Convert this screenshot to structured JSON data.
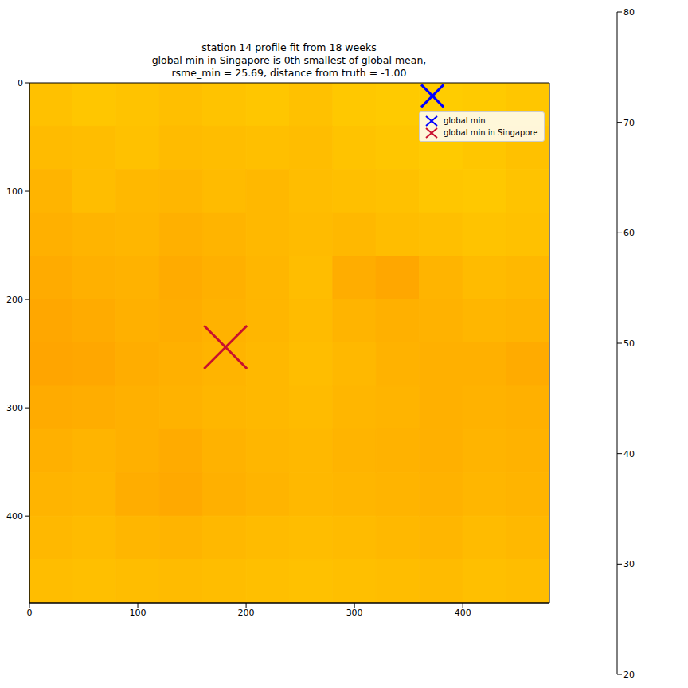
{
  "chart_data": {
    "type": "heatmap",
    "title": "station 14 profile fit from 18 weeks",
    "subtitle": [
      "global min in Singapore is 0th smallest of global mean,",
      "rsme_min = 25.69, distance from truth = -1.00"
    ],
    "xlim": [
      0,
      480
    ],
    "ylim": [
      480,
      0
    ],
    "xticks": [
      0,
      100,
      200,
      300,
      400
    ],
    "yticks": [
      0,
      100,
      200,
      300,
      400
    ],
    "x_bins": [
      0,
      40,
      80,
      120,
      160,
      200,
      240,
      280,
      320,
      360,
      400,
      440,
      480
    ],
    "y_bins": [
      0,
      40,
      80,
      120,
      160,
      200,
      240,
      280,
      320,
      360,
      400,
      440,
      480
    ],
    "cells": [
      [
        28.8,
        29.0,
        28.9,
        28.7,
        28.9,
        29.0,
        28.8,
        29.1,
        29.2,
        29.3,
        29.2,
        29.0
      ],
      [
        28.5,
        28.6,
        28.8,
        28.5,
        28.6,
        28.7,
        28.6,
        28.9,
        29.0,
        29.2,
        29.0,
        28.8
      ],
      [
        28.2,
        28.6,
        28.4,
        28.3,
        28.5,
        28.4,
        28.6,
        28.7,
        28.8,
        29.0,
        29.1,
        28.9
      ],
      [
        28.0,
        28.2,
        28.3,
        28.0,
        28.2,
        28.4,
        28.5,
        28.4,
        28.6,
        28.7,
        28.9,
        28.8
      ],
      [
        27.8,
        28.0,
        28.1,
        27.8,
        28.0,
        28.3,
        28.6,
        27.9,
        27.6,
        28.2,
        28.5,
        28.4
      ],
      [
        27.6,
        27.8,
        28.0,
        27.9,
        28.1,
        28.3,
        28.5,
        28.2,
        28.0,
        28.1,
        28.3,
        28.2
      ],
      [
        27.5,
        27.6,
        27.9,
        28.0,
        28.2,
        28.4,
        28.6,
        28.4,
        28.1,
        28.0,
        28.0,
        27.8
      ],
      [
        27.8,
        27.9,
        28.0,
        28.1,
        28.3,
        28.4,
        28.5,
        28.3,
        28.2,
        28.0,
        28.1,
        28.0
      ],
      [
        28.0,
        28.2,
        28.0,
        27.8,
        28.1,
        28.3,
        28.4,
        28.2,
        28.1,
        28.0,
        28.2,
        28.1
      ],
      [
        28.2,
        28.3,
        27.9,
        27.7,
        28.0,
        28.2,
        28.4,
        28.3,
        28.2,
        28.1,
        28.3,
        28.2
      ],
      [
        28.4,
        28.5,
        28.3,
        28.2,
        28.4,
        28.5,
        28.6,
        28.5,
        28.4,
        28.3,
        28.5,
        28.4
      ],
      [
        28.6,
        28.7,
        28.6,
        28.5,
        28.6,
        28.7,
        28.8,
        28.7,
        28.6,
        28.5,
        28.7,
        28.6
      ]
    ],
    "colorbar": {
      "range": [
        20,
        80
      ],
      "ticks": [
        20,
        30,
        40,
        50,
        60,
        70,
        80
      ]
    },
    "series": [
      {
        "name": "global min",
        "color": "#0000ff",
        "marker": "x",
        "x": [
          372
        ],
        "y": [
          12
        ]
      },
      {
        "name": "global min in Singapore",
        "color": "#c8102e",
        "marker": "x",
        "x": [
          181
        ],
        "y": [
          244
        ]
      }
    ],
    "legend": "upper right"
  }
}
